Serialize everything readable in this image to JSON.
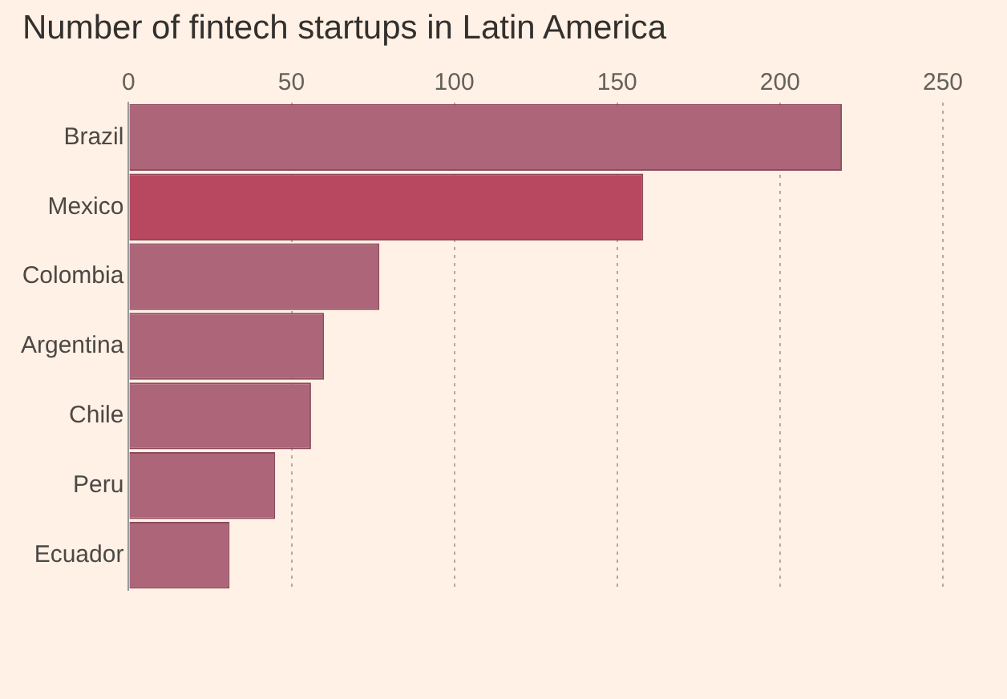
{
  "chart_data": {
    "type": "bar",
    "orientation": "horizontal",
    "title": "Number of fintech startups in Latin America",
    "categories": [
      "Brazil",
      "Mexico",
      "Colombia",
      "Argentina",
      "Chile",
      "Peru",
      "Ecuador"
    ],
    "values": [
      219,
      158,
      77,
      60,
      56,
      45,
      31
    ],
    "colors": [
      "#ad6579",
      "#b7485f",
      "#ad6579",
      "#ad6579",
      "#ad6579",
      "#ad6579",
      "#ad6579"
    ],
    "xlim": [
      0,
      250
    ],
    "xticks": [
      0,
      50,
      100,
      150,
      200,
      250
    ],
    "grid": "x",
    "legend": false
  }
}
